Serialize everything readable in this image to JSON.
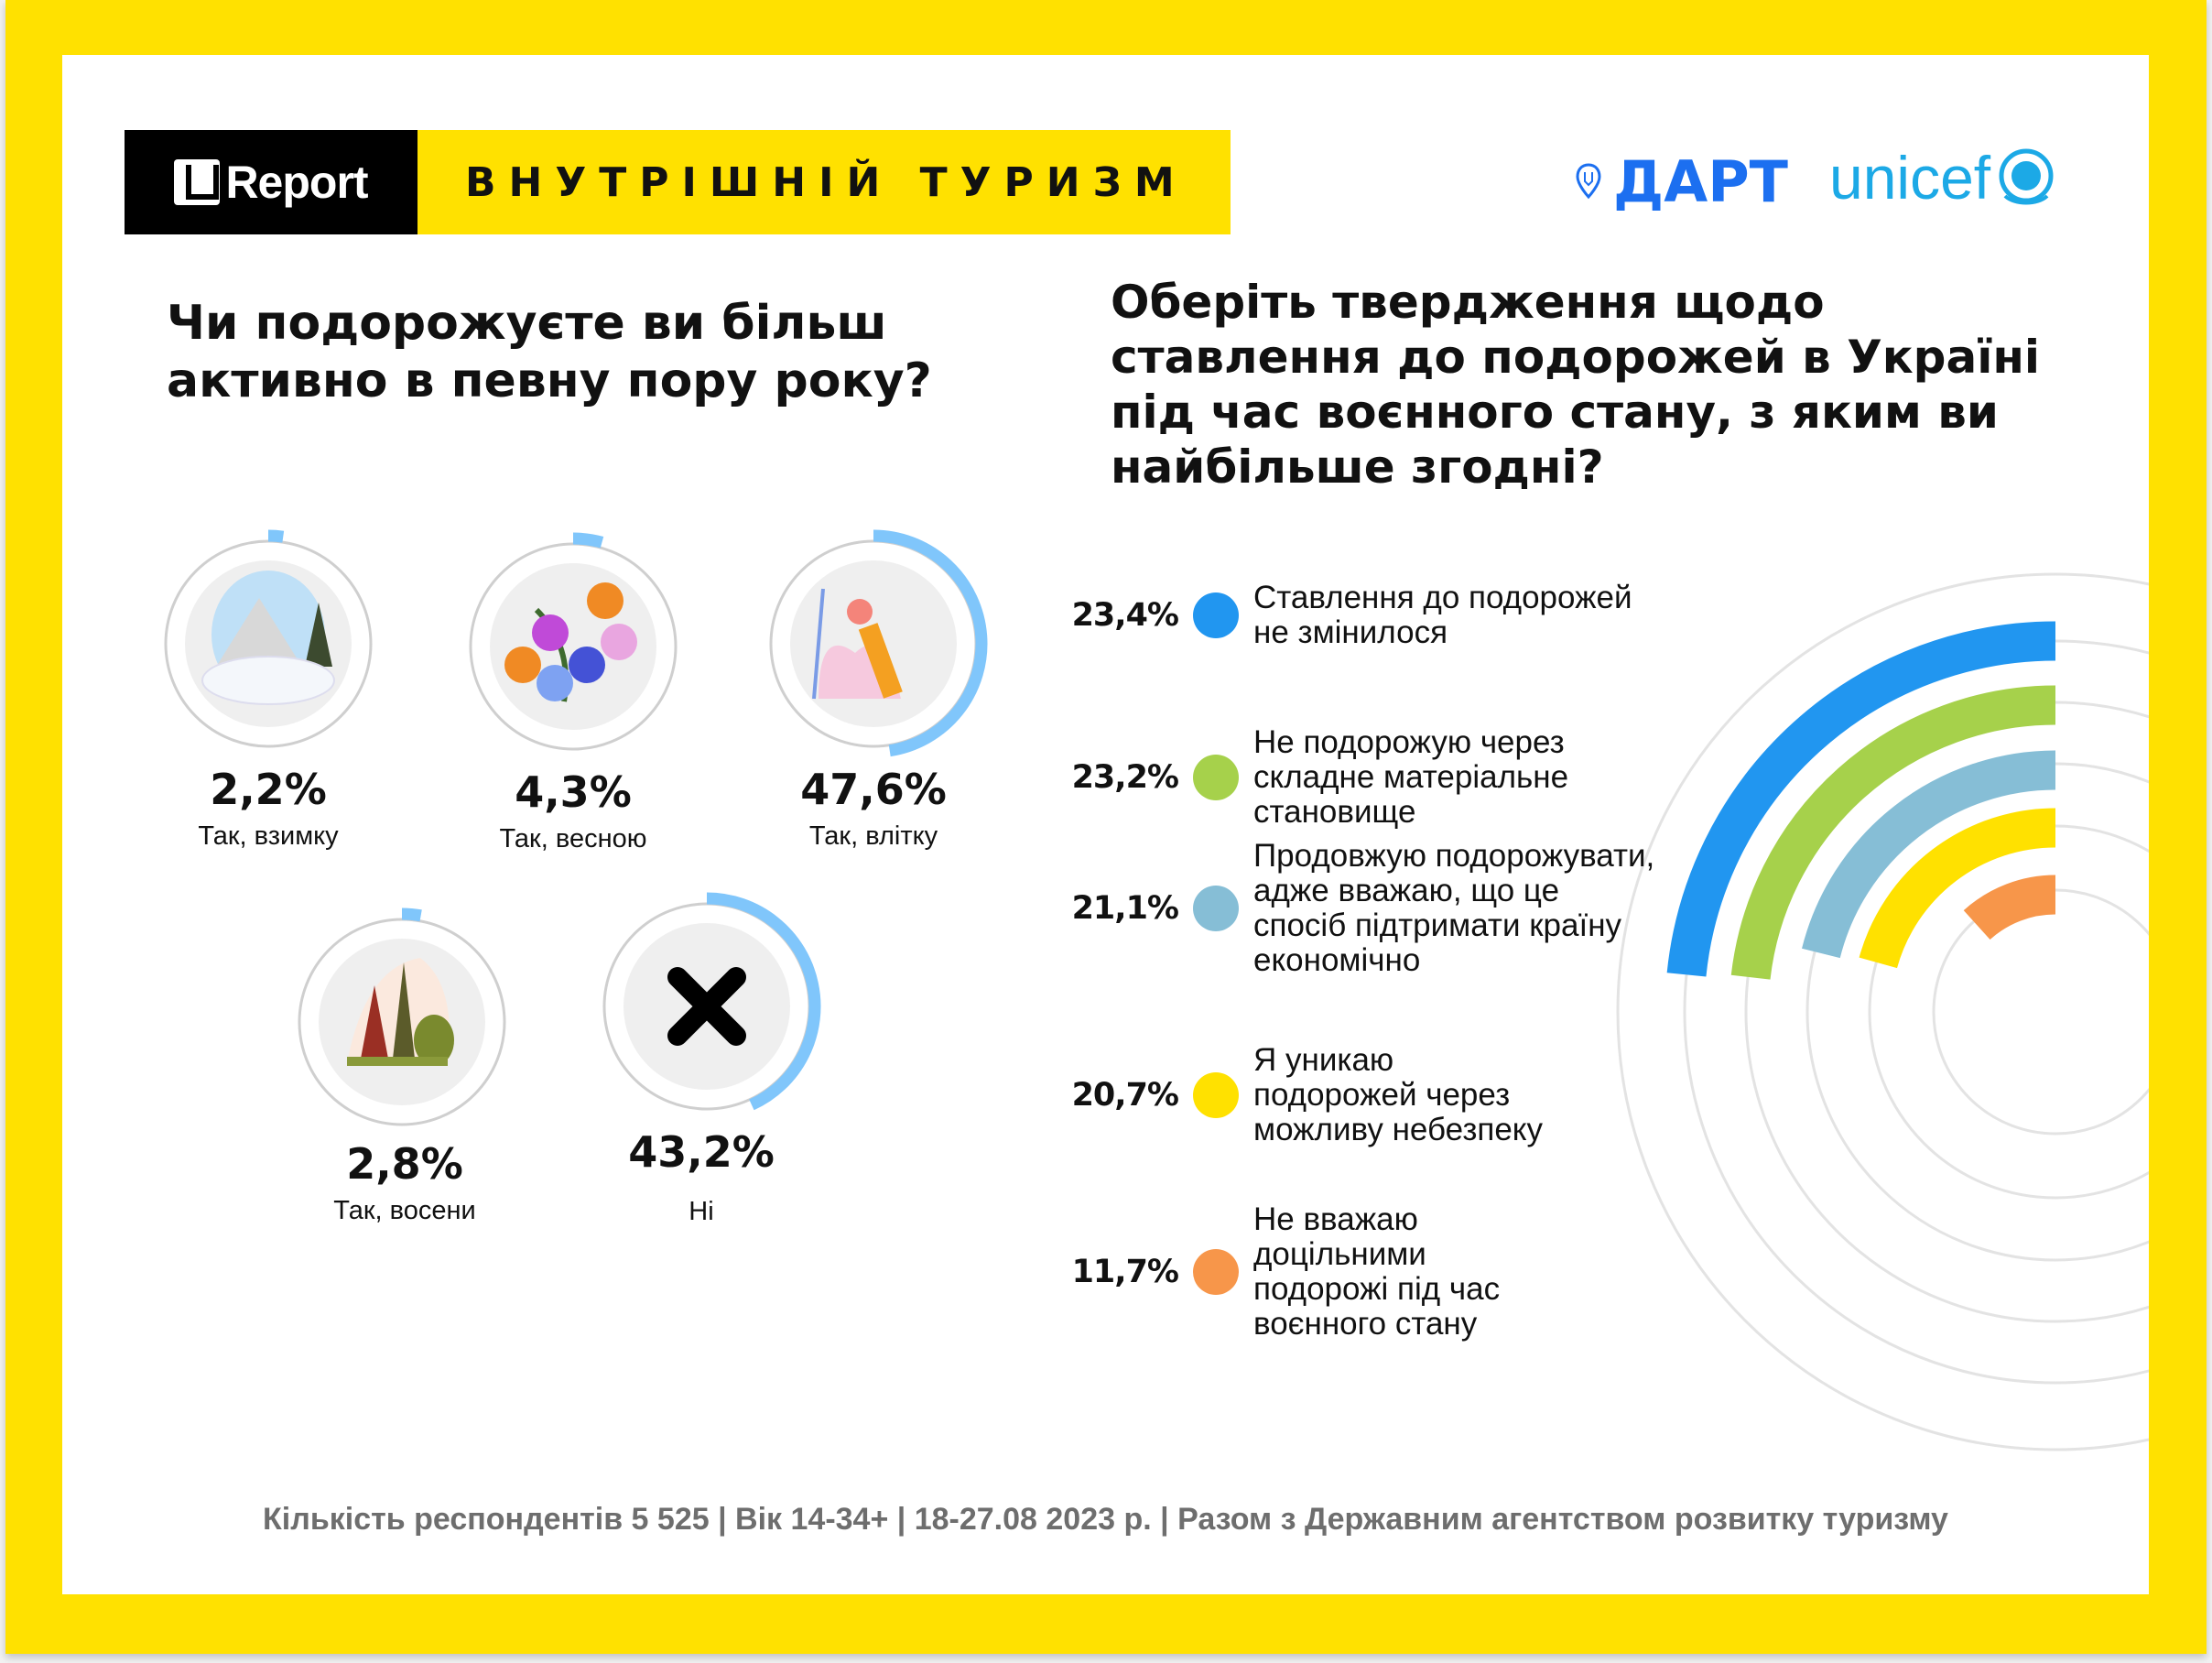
{
  "header": {
    "logo_text": "Report",
    "title": "ВНУТРІШНІЙ ТУРИЗМ",
    "partner1": "ДАРТ",
    "partner2": "unicef"
  },
  "left": {
    "question": "Чи подорожуєте ви більш активно в певну пору року?",
    "arc_color": "#80c6fb",
    "items": [
      {
        "pct": "2,2%",
        "value": 2.2,
        "label": "Так, взимку",
        "icon": "winter-mountains-icon"
      },
      {
        "pct": "4,3%",
        "value": 4.3,
        "label": "Так, весною",
        "icon": "spring-flowers-icon"
      },
      {
        "pct": "47,6%",
        "value": 47.6,
        "label": "Так, влітку",
        "icon": "summer-beach-icon"
      },
      {
        "pct": "2,8%",
        "value": 2.8,
        "label": "Так, восени",
        "icon": "autumn-forest-icon"
      },
      {
        "pct": "43,2%",
        "value": 43.2,
        "label": "Ні",
        "icon": "cross-icon"
      }
    ]
  },
  "chart_data": {
    "type": "radial-bar",
    "title": "Оберіть твердження щодо ставлення до подорожей в Україні під час воєнного стану, з яким ви найбільше згодні?",
    "categories": [
      "Ставлення до подорожей не змінилося",
      "Не подорожую через складне матеріальне становище",
      "Продовжую подорожувати, адже вважаю, що це спосіб підтримати країну економічно",
      "Я уникаю подорожей через можливу небезпеку",
      "Не вважаю доцільними подорожі під час воєнного стану"
    ],
    "values": [
      23.4,
      23.2,
      21.1,
      20.7,
      11.7
    ],
    "labels": [
      "23,4%",
      "23,2%",
      "21,1%",
      "20,7%",
      "11,7%"
    ],
    "colors": [
      "#2196f0",
      "#a6d14b",
      "#86bed6",
      "#ffe100",
      "#f7964a"
    ]
  },
  "footer": "Кількість респондентів 5 525 |  Вік 14-34+ | 18-27.08 2023 р. | Разом з Державним агентством розвитку туризму"
}
